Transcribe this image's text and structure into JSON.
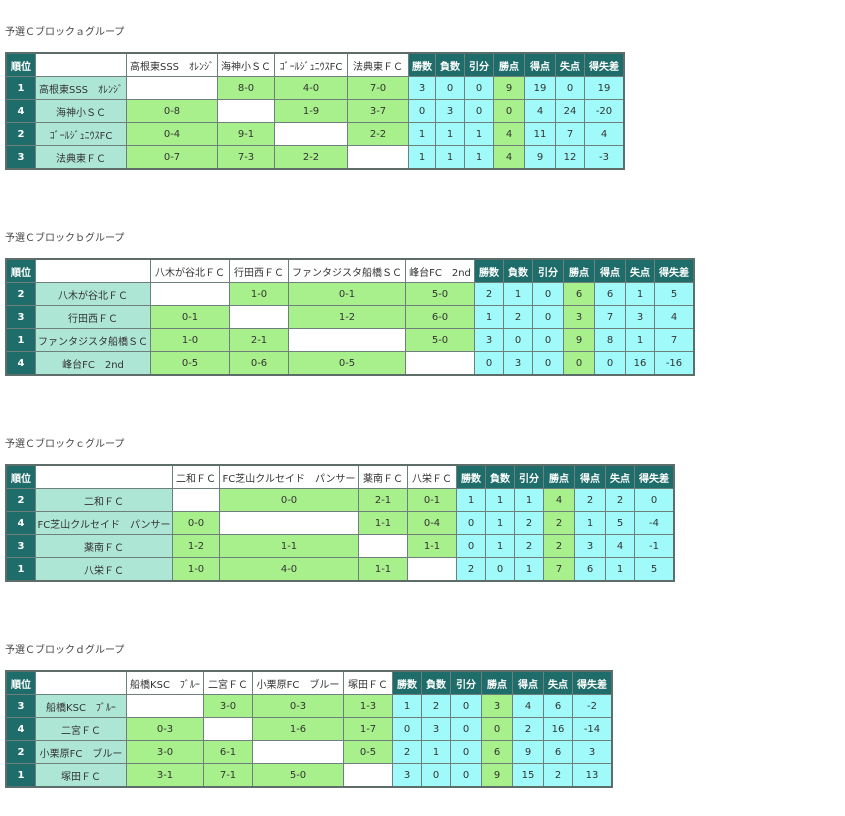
{
  "header_labels": {
    "rank": "順位",
    "stats": [
      "勝数",
      "負数",
      "引分",
      "勝点",
      "得点",
      "失点",
      "得失差"
    ]
  },
  "groups": [
    {
      "title": "予選Ｃブロックａグループ",
      "teams": [
        "高根東SSS　ｵﾚﾝｼﾞ",
        "海神小ＳＣ",
        "ｺﾞｰﾙｼﾞｭﾆｳｽFC",
        "法典東ＦＣ"
      ],
      "rows": [
        {
          "rank": "1",
          "team": "高根東SSS　ｵﾚﾝｼﾞ",
          "results": [
            "",
            "8-0",
            "4-0",
            "7-0"
          ],
          "stats": [
            "3",
            "0",
            "0",
            "9",
            "19",
            "0",
            "19"
          ]
        },
        {
          "rank": "4",
          "team": "海神小ＳＣ",
          "results": [
            "0-8",
            "",
            "1-9",
            "3-7"
          ],
          "stats": [
            "0",
            "3",
            "0",
            "0",
            "4",
            "24",
            "-20"
          ]
        },
        {
          "rank": "2",
          "team": "ｺﾞｰﾙｼﾞｭﾆｳｽFC",
          "results": [
            "0-4",
            "9-1",
            "",
            "2-2"
          ],
          "stats": [
            "1",
            "1",
            "1",
            "4",
            "11",
            "7",
            "4"
          ]
        },
        {
          "rank": "3",
          "team": "法典東ＦＣ",
          "results": [
            "0-7",
            "7-3",
            "2-2",
            ""
          ],
          "stats": [
            "1",
            "1",
            "1",
            "4",
            "9",
            "12",
            "-3"
          ]
        }
      ]
    },
    {
      "title": "予選Ｃブロックｂグループ",
      "teams": [
        "八木が谷北ＦＣ",
        "行田西ＦＣ",
        "ファンタジスタ船橋ＳＣ",
        "峰台FC　2nd"
      ],
      "rows": [
        {
          "rank": "2",
          "team": "八木が谷北ＦＣ",
          "results": [
            "",
            "1-0",
            "0-1",
            "5-0"
          ],
          "stats": [
            "2",
            "1",
            "0",
            "6",
            "6",
            "1",
            "5"
          ]
        },
        {
          "rank": "3",
          "team": "行田西ＦＣ",
          "results": [
            "0-1",
            "",
            "1-2",
            "6-0"
          ],
          "stats": [
            "1",
            "2",
            "0",
            "3",
            "7",
            "3",
            "4"
          ]
        },
        {
          "rank": "1",
          "team": "ファンタジスタ船橋ＳＣ",
          "results": [
            "1-0",
            "2-1",
            "",
            "5-0"
          ],
          "stats": [
            "3",
            "0",
            "0",
            "9",
            "8",
            "1",
            "7"
          ]
        },
        {
          "rank": "4",
          "team": "峰台FC　2nd",
          "results": [
            "0-5",
            "0-6",
            "0-5",
            ""
          ],
          "stats": [
            "0",
            "3",
            "0",
            "0",
            "0",
            "16",
            "-16"
          ]
        }
      ]
    },
    {
      "title": "予選Ｃブロックｃグループ",
      "teams": [
        "二和ＦＣ",
        "FC芝山クルセイド　パンサー",
        "薬南ＦＣ",
        "八栄ＦＣ"
      ],
      "rows": [
        {
          "rank": "2",
          "team": "二和ＦＣ",
          "results": [
            "",
            "0-0",
            "2-1",
            "0-1"
          ],
          "stats": [
            "1",
            "1",
            "1",
            "4",
            "2",
            "2",
            "0"
          ]
        },
        {
          "rank": "4",
          "team": "FC芝山クルセイド　パンサー",
          "results": [
            "0-0",
            "",
            "1-1",
            "0-4"
          ],
          "stats": [
            "0",
            "1",
            "2",
            "2",
            "1",
            "5",
            "-4"
          ]
        },
        {
          "rank": "3",
          "team": "薬南ＦＣ",
          "results": [
            "1-2",
            "1-1",
            "",
            "1-1"
          ],
          "stats": [
            "0",
            "1",
            "2",
            "2",
            "3",
            "4",
            "-1"
          ]
        },
        {
          "rank": "1",
          "team": "八栄ＦＣ",
          "results": [
            "1-0",
            "4-0",
            "1-1",
            ""
          ],
          "stats": [
            "2",
            "0",
            "1",
            "7",
            "6",
            "1",
            "5"
          ]
        }
      ]
    },
    {
      "title": "予選Ｃブロックｄグループ",
      "teams": [
        "船橋KSC　ﾌﾞﾙｰ",
        "二宮ＦＣ",
        "小栗原FC　ブルー",
        "塚田ＦＣ"
      ],
      "rows": [
        {
          "rank": "3",
          "team": "船橋KSC　ﾌﾞﾙｰ",
          "results": [
            "",
            "3-0",
            "0-3",
            "1-3"
          ],
          "stats": [
            "1",
            "2",
            "0",
            "3",
            "4",
            "6",
            "-2"
          ]
        },
        {
          "rank": "4",
          "team": "二宮ＦＣ",
          "results": [
            "0-3",
            "",
            "1-6",
            "1-7"
          ],
          "stats": [
            "0",
            "3",
            "0",
            "0",
            "2",
            "16",
            "-14"
          ]
        },
        {
          "rank": "2",
          "team": "小栗原FC　ブルー",
          "results": [
            "3-0",
            "6-1",
            "",
            "0-5"
          ],
          "stats": [
            "2",
            "1",
            "0",
            "6",
            "9",
            "6",
            "3"
          ]
        },
        {
          "rank": "1",
          "team": "塚田ＦＣ",
          "results": [
            "3-1",
            "7-1",
            "5-0",
            ""
          ],
          "stats": [
            "3",
            "0",
            "0",
            "9",
            "15",
            "2",
            "13"
          ]
        }
      ]
    }
  ]
}
